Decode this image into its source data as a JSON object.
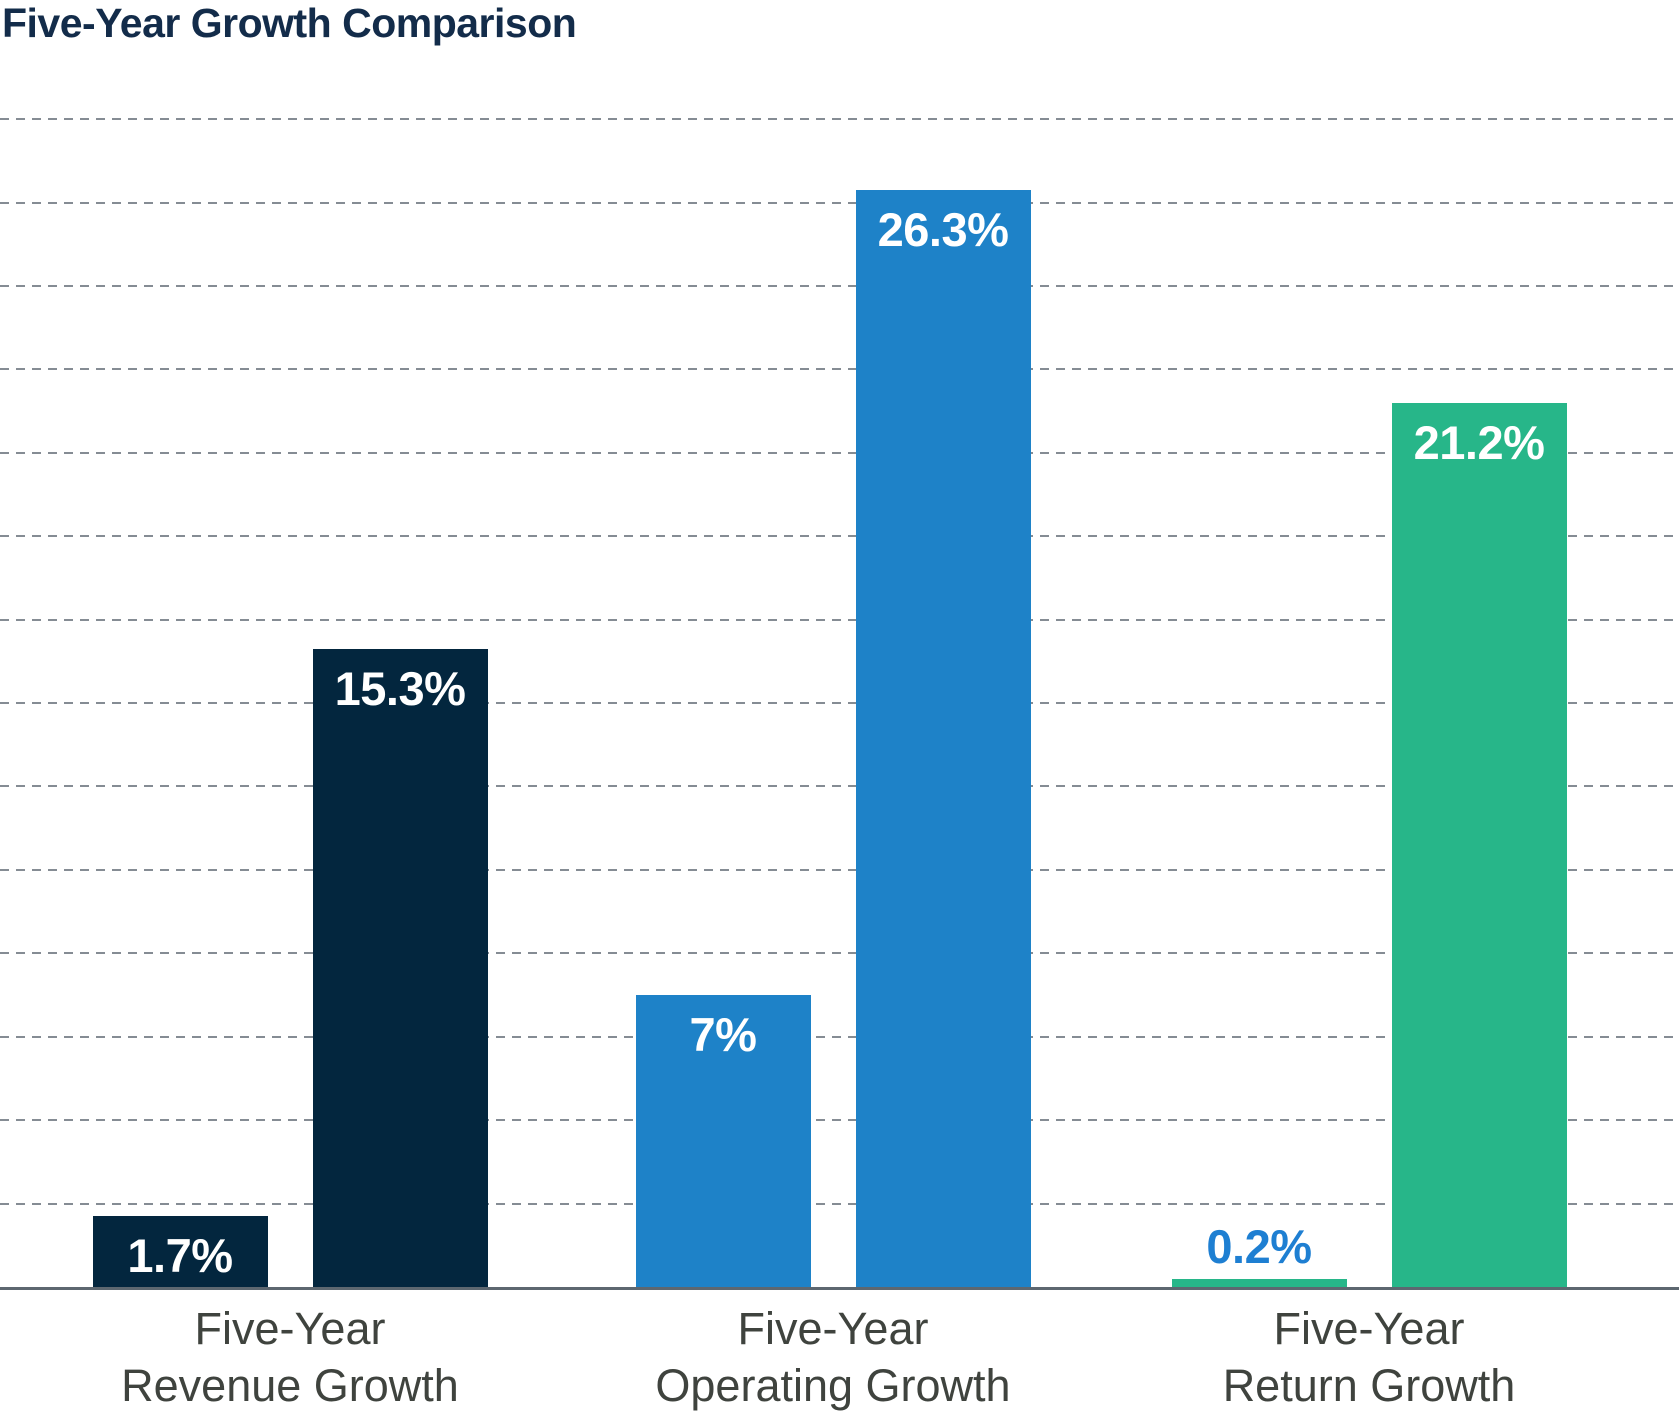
{
  "title": "Five-Year Growth Comparison",
  "colors": {
    "title": "#132C4A",
    "gridline": "#858C94",
    "axis": "#5D6770",
    "category_label": "#3F433E",
    "navy": "#03263E",
    "blue": "#1E82C8",
    "green": "#27B689",
    "outside_label_blue": "#1E7FD2",
    "inside_label_white": "#FFFFFF"
  },
  "chart_data": {
    "type": "bar",
    "title": "Five-Year Growth Comparison",
    "ylabel": "",
    "xlabel": "",
    "ylim": [
      0,
      30
    ],
    "grid": {
      "visible": true,
      "style": "dashed",
      "step_pct": 2,
      "max_pct": 28
    },
    "legend": "none",
    "categories": [
      "Five-Year Revenue Growth",
      "Five-Year Operating Growth",
      "Five-Year Return Growth"
    ],
    "groups": [
      {
        "category_lines": [
          "Five-Year",
          "Revenue Growth"
        ],
        "color": "#03263E",
        "bars": [
          {
            "value": 1.7,
            "label": "1.7%",
            "label_position": "inside",
            "label_color": "#FFFFFF"
          },
          {
            "value": 15.3,
            "label": "15.3%",
            "label_position": "inside",
            "label_color": "#FFFFFF"
          }
        ]
      },
      {
        "category_lines": [
          "Five-Year",
          "Operating Growth"
        ],
        "color": "#1E82C8",
        "bars": [
          {
            "value": 7,
            "label": "7%",
            "label_position": "inside",
            "label_color": "#FFFFFF"
          },
          {
            "value": 26.3,
            "label": "26.3%",
            "label_position": "inside",
            "label_color": "#FFFFFF"
          }
        ]
      },
      {
        "category_lines": [
          "Five-Year",
          "Return Growth"
        ],
        "color": "#27B689",
        "bars": [
          {
            "value": 0.2,
            "label": "0.2%",
            "label_position": "above",
            "label_color": "#1E7FD2"
          },
          {
            "value": 21.2,
            "label": "21.2%",
            "label_position": "inside",
            "label_color": "#FFFFFF"
          }
        ]
      }
    ]
  }
}
